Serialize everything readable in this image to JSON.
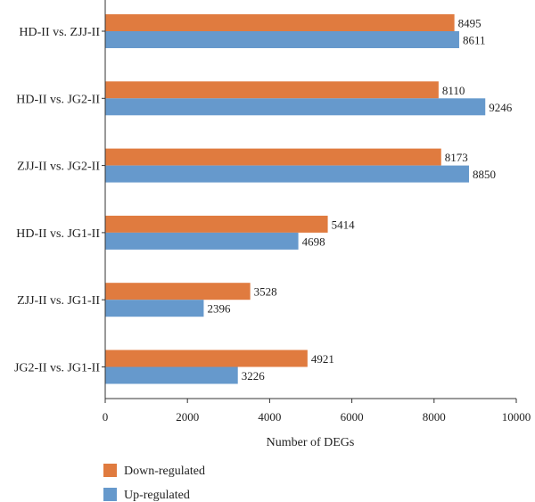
{
  "chart_data": {
    "type": "bar",
    "orientation": "horizontal",
    "categories": [
      "HD-II vs. ZJJ-II",
      "HD-II vs. JG2-II",
      "ZJJ-II vs. JG2-II",
      "HD-II vs. JG1-II",
      "ZJJ-II vs. JG1-II",
      "JG2-II vs. JG1-II"
    ],
    "series": [
      {
        "name": "Down-regulated",
        "color": "#E07B3F",
        "values": [
          8495,
          8110,
          8173,
          5414,
          3528,
          4921
        ]
      },
      {
        "name": "Up-regulated",
        "color": "#6699CC",
        "values": [
          8611,
          9246,
          8850,
          4698,
          2396,
          3226
        ]
      }
    ],
    "xlabel": "Number of DEGs",
    "ylabel": "",
    "xlim": [
      0,
      10000
    ],
    "xticks": [
      0,
      2000,
      4000,
      6000,
      8000,
      10000
    ],
    "legend_position": "bottom-left",
    "grid": false
  }
}
